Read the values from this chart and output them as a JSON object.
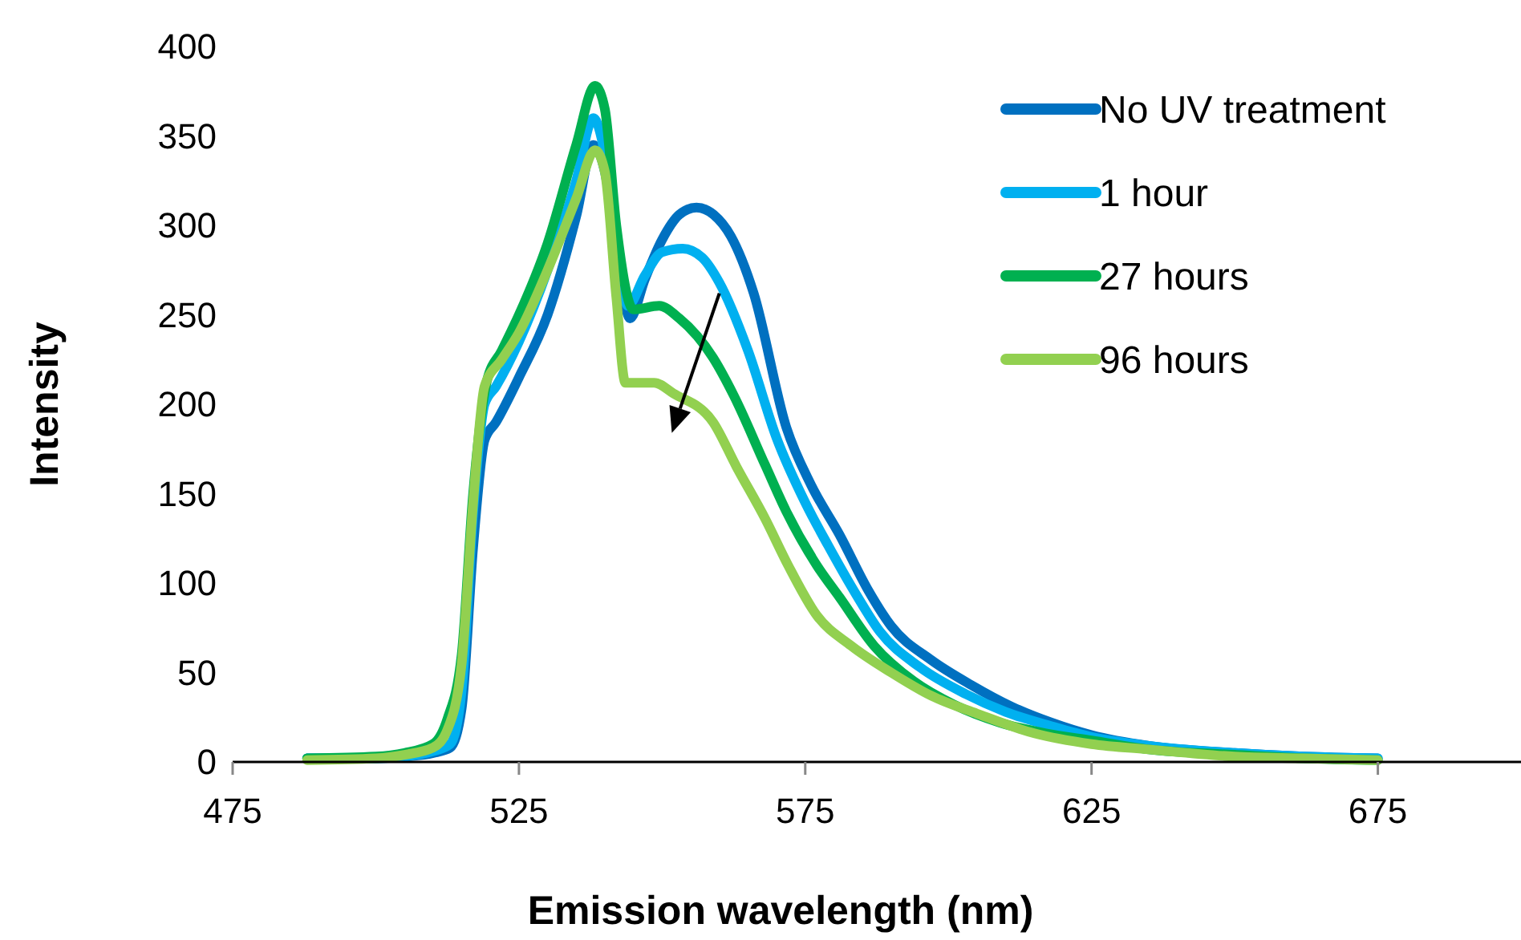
{
  "chart_data": {
    "type": "line",
    "xlabel": "Emission wavelength (nm)",
    "ylabel": "Intensity",
    "xlim": [
      475,
      700
    ],
    "xticks": [
      475,
      525,
      575,
      625,
      675
    ],
    "ylim": [
      0,
      400
    ],
    "yticks": [
      0,
      50,
      100,
      150,
      200,
      250,
      300,
      350,
      400
    ],
    "grid": false,
    "legend": "top right",
    "marker": "none",
    "line_style": "solid",
    "series": [
      {
        "name": "No UV treatment",
        "color": "#0070c0",
        "x": [
          488,
          500,
          505,
          510,
          513,
          515,
          517,
          519,
          521,
          525,
          530,
          535,
          538,
          540,
          542,
          544.4,
          547,
          550,
          553,
          556,
          559,
          562,
          566,
          571.7,
          576,
          581,
          586,
          590,
          597,
          604,
          611,
          618,
          625,
          635,
          650,
          662,
          675
        ],
        "values": [
          2,
          2,
          3,
          5,
          8,
          30,
          120,
          180,
          190,
          215,
          250,
          305,
          345,
          330,
          290,
          248,
          270,
          292,
          306,
          310,
          306,
          294,
          262,
          187,
          155,
          127,
          96,
          76,
          57,
          43,
          31,
          22,
          15,
          9,
          5,
          3,
          2
        ]
      },
      {
        "name": "1 hour",
        "color": "#00b0f0",
        "x": [
          488,
          500,
          505,
          510,
          513,
          515,
          517,
          519,
          521,
          525,
          530,
          535,
          538,
          540,
          542,
          544,
          547,
          550,
          553.6,
          557,
          560,
          565,
          570,
          575,
          579,
          584,
          588,
          595,
          603,
          610,
          618,
          625,
          635,
          650,
          662,
          675
        ],
        "values": [
          2,
          2,
          3,
          6,
          10,
          40,
          140,
          200,
          210,
          235,
          275,
          325,
          360,
          340,
          295,
          255,
          272,
          285,
          287,
          282,
          268,
          230,
          181,
          145,
          121,
          93,
          73,
          53,
          38,
          28,
          20,
          14,
          9,
          5,
          3,
          2
        ]
      },
      {
        "name": "27 hours",
        "color": "#00b050",
        "x": [
          488,
          500,
          505,
          510,
          512.5,
          515,
          517,
          519.4,
          522,
          525,
          530,
          535,
          538.3,
          540,
          542,
          545,
          549.5,
          553,
          558.9,
          562.5,
          568,
          571.7,
          577,
          581,
          587,
          594,
          601,
          609,
          617,
          625,
          635,
          650,
          662,
          675
        ],
        "values": [
          2,
          3,
          5,
          10,
          24,
          60,
          150,
          213,
          230,
          250,
          290,
          345,
          378,
          365,
          300,
          253,
          255,
          248,
          226,
          205,
          166,
          140,
          110,
          92,
          65,
          45,
          32,
          22,
          16,
          12,
          7,
          4,
          2,
          1
        ]
      },
      {
        "name": "96 hours",
        "color": "#92d050",
        "x": [
          488,
          500,
          505,
          510,
          512.5,
          515,
          517,
          519,
          522,
          525,
          530,
          535,
          538.3,
          540,
          542,
          543.6,
          548.6,
          552,
          558.9,
          563,
          568,
          572,
          577,
          583,
          590,
          597,
          605,
          615,
          625,
          635,
          650,
          662,
          675
        ],
        "values": [
          1,
          2,
          4,
          8,
          18,
          55,
          145,
          210,
          225,
          240,
          275,
          315,
          342,
          330,
          260,
          212,
          212,
          206,
          190,
          165,
          136,
          110,
          82,
          65,
          50,
          37,
          27,
          16,
          10,
          7,
          3,
          2,
          1
        ]
      }
    ]
  }
}
